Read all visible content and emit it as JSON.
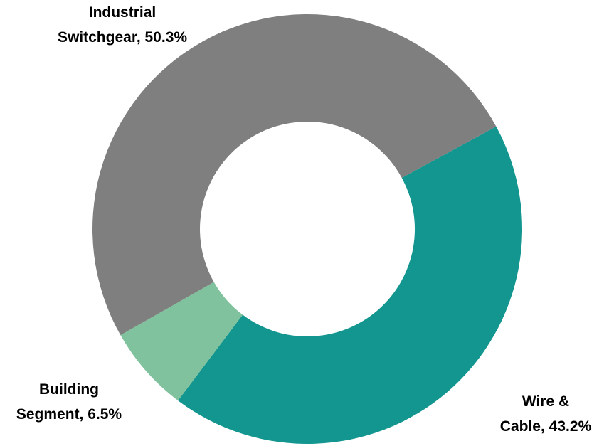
{
  "chart_data": {
    "type": "pie",
    "categories": [
      "Wire & Cable",
      "Building Segment",
      "Industrial Switchgear"
    ],
    "values": [
      43.2,
      6.5,
      50.3
    ],
    "value_labels": [
      "Wire & Cable, 43.2%",
      "Building Segment, 6.5%",
      "Industrial Switchgear, 50.3%"
    ],
    "colors": [
      "#12968f",
      "#80c29e",
      "#7f7f7f"
    ],
    "donut": true
  }
}
